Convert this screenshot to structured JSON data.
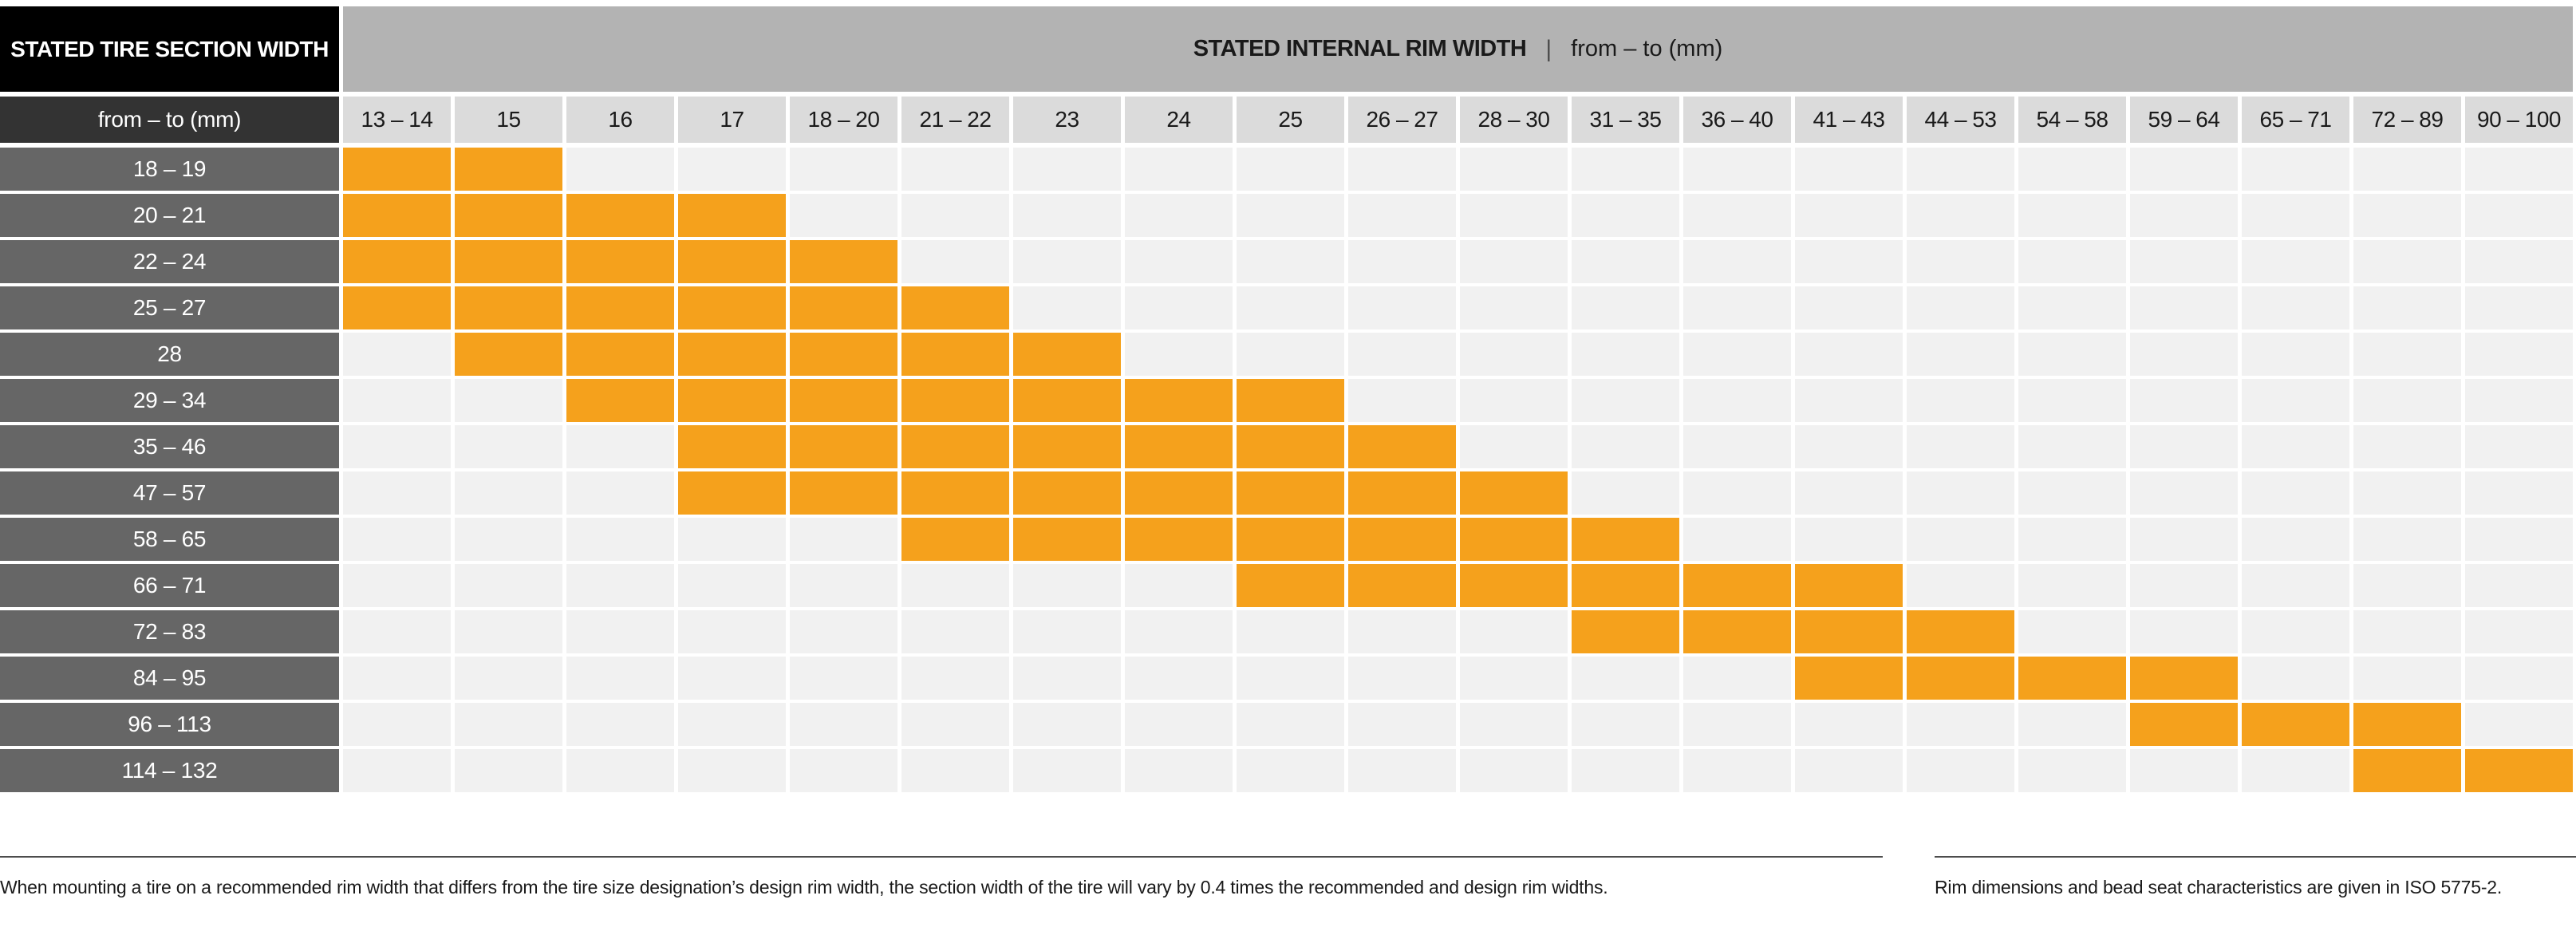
{
  "header": {
    "tire_title": "STATED TIRE SECTION WIDTH",
    "rim_title": "STATED INTERNAL RIM WIDTH",
    "separator": "|",
    "rim_subtitle": "from – to (mm)",
    "row_unit": "from – to (mm)"
  },
  "colors": {
    "orange": "#F5A11C",
    "black": "#000000",
    "header-gray": "#B3B3B3",
    "unit-gray": "#333333",
    "rowlabel-gray": "#666666",
    "colhead-gray": "#DBDBDB",
    "empty-gray": "#F1F1F1",
    "rule-gray": "#4D4D4D",
    "text-dark": "#1A1A1A"
  },
  "chart_data": {
    "type": "heatmap",
    "title": "STATED INTERNAL RIM WIDTH | from – to (mm)",
    "row_axis_title": "STATED TIRE SECTION WIDTH",
    "row_axis_unit": "from – to (mm)",
    "marked_color": "#F5A11C",
    "columns": [
      "13 – 14",
      "15",
      "16",
      "17",
      "18 – 20",
      "21 – 22",
      "23",
      "24",
      "25",
      "26 – 27",
      "28 – 30",
      "31 – 35",
      "36 – 40",
      "41 – 43",
      "44 – 53",
      "54 – 58",
      "59 – 64",
      "65 – 71",
      "72 – 89",
      "90 – 100"
    ],
    "rows": [
      {
        "label": "18 – 19",
        "marked": [
          1,
          2
        ],
        "marked_from": "13 – 14",
        "marked_to": "15"
      },
      {
        "label": "20 – 21",
        "marked": [
          1,
          4
        ],
        "marked_from": "13 – 14",
        "marked_to": "17"
      },
      {
        "label": "22 – 24",
        "marked": [
          1,
          5
        ],
        "marked_from": "13 – 14",
        "marked_to": "18 – 20"
      },
      {
        "label": "25 – 27",
        "marked": [
          1,
          6
        ],
        "marked_from": "13 – 14",
        "marked_to": "21 – 22"
      },
      {
        "label": "28",
        "marked": [
          2,
          7
        ],
        "marked_from": "15",
        "marked_to": "23"
      },
      {
        "label": "29 – 34",
        "marked": [
          3,
          9
        ],
        "marked_from": "16",
        "marked_to": "25"
      },
      {
        "label": "35 – 46",
        "marked": [
          4,
          10
        ],
        "marked_from": "17",
        "marked_to": "26 – 27"
      },
      {
        "label": "47 – 57",
        "marked": [
          4,
          11
        ],
        "marked_from": "17",
        "marked_to": "28 – 30"
      },
      {
        "label": "58 – 65",
        "marked": [
          6,
          12
        ],
        "marked_from": "21 – 22",
        "marked_to": "31 – 35"
      },
      {
        "label": "66 – 71",
        "marked": [
          9,
          14
        ],
        "marked_from": "25",
        "marked_to": "41 – 43"
      },
      {
        "label": "72 – 83",
        "marked": [
          12,
          15
        ],
        "marked_from": "31 – 35",
        "marked_to": "44 – 53"
      },
      {
        "label": "84 – 95",
        "marked": [
          14,
          17
        ],
        "marked_from": "41 – 43",
        "marked_to": "59 – 64"
      },
      {
        "label": "96 – 113",
        "marked": [
          17,
          19
        ],
        "marked_from": "59 – 64",
        "marked_to": "72 – 89"
      },
      {
        "label": "114 – 132",
        "marked": [
          19,
          20
        ],
        "marked_from": "72 – 89",
        "marked_to": "90 – 100"
      }
    ]
  },
  "footnotes": {
    "left": "When mounting a tire on a recommended rim width that differs from the tire size designation’s design rim width, the section width of the tire will vary by 0.4 times the recommended and design rim widths.",
    "right": "Rim dimensions and bead seat characteristics are given in ISO 5775-2."
  }
}
